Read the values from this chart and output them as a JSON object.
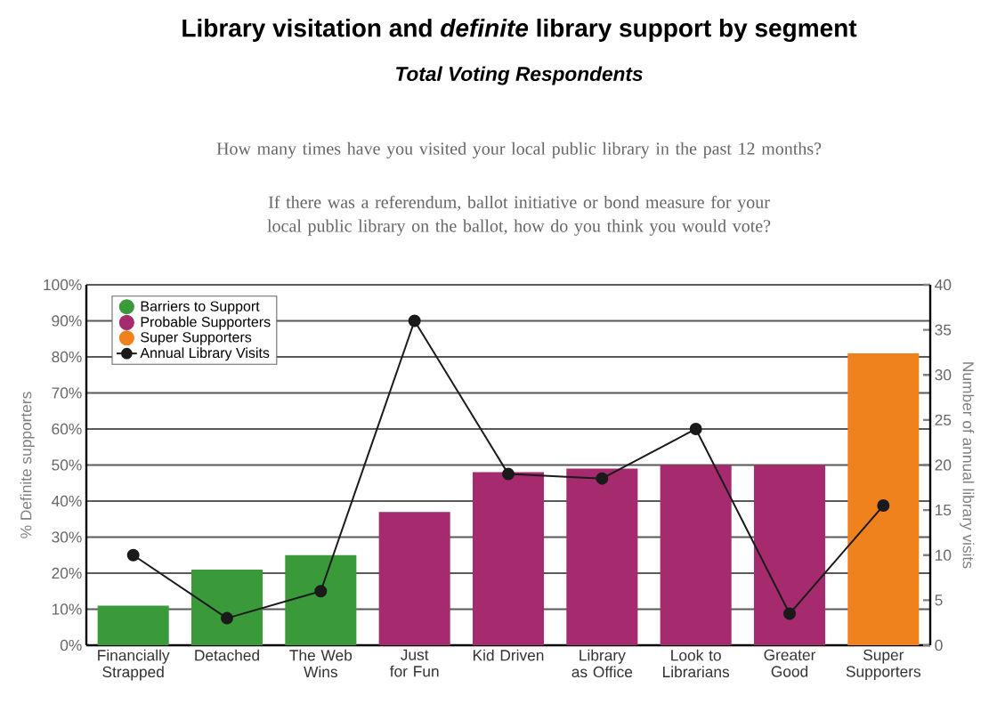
{
  "chart_data": {
    "type": "bar",
    "title": "Library visitation and *definite* library support by segment",
    "subtitle": "Total Voting Respondents",
    "annotations": [
      "How many times have you visited your local public library in the past 12 months?",
      "If there was a referendum, ballot initiative or bond measure for your local public library on the ballot, how do you think you would vote?"
    ],
    "ylabel": "% Definite supporters",
    "y2label": "Number of annual library visits",
    "categories": [
      "Financially Strapped",
      "Detached",
      "The Web Wins",
      "Just for Fun",
      "Kid Driven",
      "Library as Office",
      "Look to Librarians",
      "Greater Good",
      "Super Supporters"
    ],
    "series": [
      {
        "name": "Barriers to Support",
        "color": "#3a9a3a",
        "values": [
          11,
          21,
          25,
          null,
          null,
          null,
          null,
          null,
          null
        ]
      },
      {
        "name": "Probable Supporters",
        "color": "#a62a6e",
        "values": [
          null,
          null,
          null,
          37,
          48,
          49,
          50,
          50,
          null
        ]
      },
      {
        "name": "Super Supporters",
        "color": "#f0821e",
        "values": [
          null,
          null,
          null,
          null,
          null,
          null,
          null,
          null,
          81
        ]
      },
      {
        "name": "Annual Library Visits",
        "type": "line",
        "axis": "y2",
        "color": "#1a1a1a",
        "marker": "circle",
        "values": [
          10,
          3,
          6,
          36,
          19,
          18.5,
          24,
          3.5,
          15.5
        ]
      }
    ],
    "ylim": [
      0,
      100
    ],
    "yticks": [
      {
        "value": 0,
        "label": "0%"
      },
      {
        "value": 10,
        "label": "10%"
      },
      {
        "value": 20,
        "label": "20%"
      },
      {
        "value": 30,
        "label": "30%"
      },
      {
        "value": 40,
        "label": "40%"
      },
      {
        "value": 50,
        "label": "50%"
      },
      {
        "value": 60,
        "label": "60%"
      },
      {
        "value": 70,
        "label": "70%"
      },
      {
        "value": 80,
        "label": "80%"
      },
      {
        "value": 90,
        "label": "90%"
      },
      {
        "value": 100,
        "label": "100%"
      }
    ],
    "y2lim": [
      0,
      40
    ],
    "y2ticks": [
      0,
      5,
      10,
      15,
      20,
      25,
      30,
      35,
      40
    ],
    "grid": "y",
    "legend": "top left"
  }
}
